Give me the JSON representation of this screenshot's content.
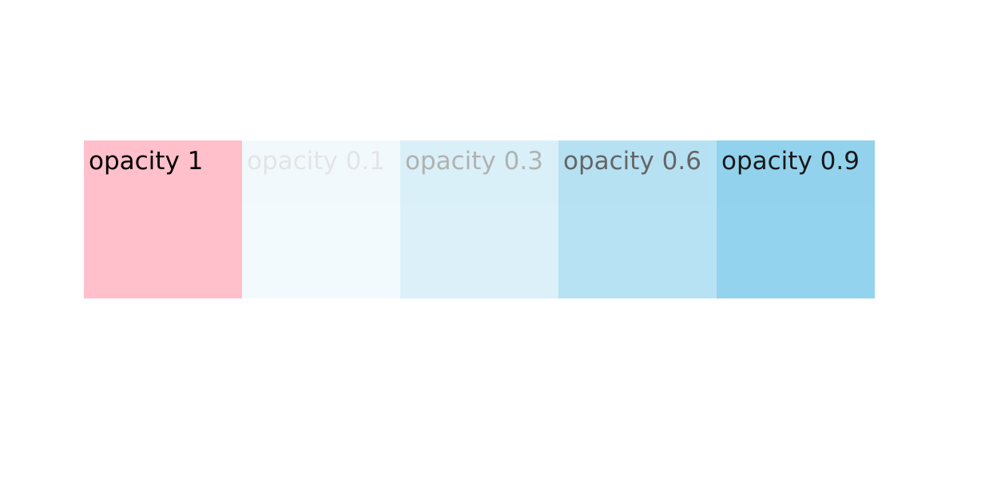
{
  "boxes": [
    {
      "label": "opacity 1",
      "color": "#ffc0cb",
      "opacity": 1
    },
    {
      "label": "opacity 0.1",
      "color": "#87ceeb",
      "opacity": 0.1
    },
    {
      "label": "opacity 0.3",
      "color": "#87ceeb",
      "opacity": 0.3
    },
    {
      "label": "opacity 0.6",
      "color": "#87ceeb",
      "opacity": 0.6
    },
    {
      "label": "opacity 0.9",
      "color": "#87ceeb",
      "opacity": 0.9
    }
  ]
}
